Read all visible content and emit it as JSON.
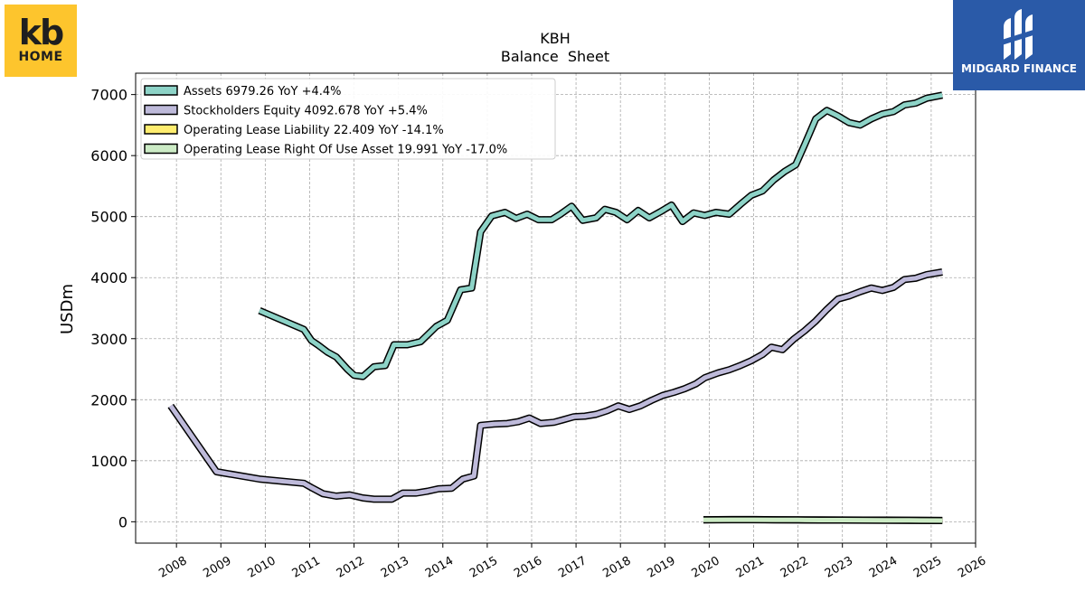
{
  "logos": {
    "left": {
      "line1": "kb",
      "line2": "HOME"
    },
    "right": {
      "text": "MIDGARD FINANCE"
    }
  },
  "chart_data": {
    "type": "line",
    "title": "KBH",
    "subtitle": "Balance  Sheet",
    "ylabel": "USDm",
    "xlabel": "",
    "ylim": [
      -350,
      7350
    ],
    "xlim": [
      2007.08,
      2026.0
    ],
    "yticks": [
      0,
      1000,
      2000,
      3000,
      4000,
      5000,
      6000,
      7000
    ],
    "xticks": [
      2008,
      2009,
      2010,
      2011,
      2012,
      2013,
      2014,
      2015,
      2016,
      2017,
      2018,
      2019,
      2020,
      2021,
      2022,
      2023,
      2024,
      2025,
      2026
    ],
    "grid": true,
    "legend_position": "top-left",
    "legend": [
      "Assets  6979.26 YoY +4.4%",
      "Stockholders Equity  4092.678 YoY +5.4%",
      "Operating Lease Liability  22.409 YoY -14.1%",
      "Operating Lease Right Of Use Asset  19.991 YoY -17.0%"
    ],
    "series": [
      {
        "name": "Assets",
        "color": "#8dd3c7",
        "points": [
          [
            2009.87,
            3460
          ],
          [
            2010.87,
            3150
          ],
          [
            2011.04,
            2970
          ],
          [
            2011.2,
            2890
          ],
          [
            2011.4,
            2780
          ],
          [
            2011.6,
            2700
          ],
          [
            2011.85,
            2500
          ],
          [
            2012.0,
            2400
          ],
          [
            2012.2,
            2380
          ],
          [
            2012.45,
            2540
          ],
          [
            2012.7,
            2560
          ],
          [
            2012.9,
            2900
          ],
          [
            2013.2,
            2900
          ],
          [
            2013.5,
            2950
          ],
          [
            2013.85,
            3200
          ],
          [
            2014.1,
            3300
          ],
          [
            2014.4,
            3800
          ],
          [
            2014.65,
            3830
          ],
          [
            2014.85,
            4750
          ],
          [
            2015.1,
            5010
          ],
          [
            2015.4,
            5070
          ],
          [
            2015.65,
            4970
          ],
          [
            2015.9,
            5040
          ],
          [
            2016.15,
            4950
          ],
          [
            2016.45,
            4950
          ],
          [
            2016.65,
            5040
          ],
          [
            2016.9,
            5170
          ],
          [
            2017.15,
            4940
          ],
          [
            2017.45,
            4980
          ],
          [
            2017.65,
            5120
          ],
          [
            2017.9,
            5070
          ],
          [
            2018.15,
            4950
          ],
          [
            2018.4,
            5100
          ],
          [
            2018.65,
            4980
          ],
          [
            2018.9,
            5080
          ],
          [
            2019.15,
            5190
          ],
          [
            2019.4,
            4920
          ],
          [
            2019.65,
            5060
          ],
          [
            2019.9,
            5020
          ],
          [
            2020.15,
            5070
          ],
          [
            2020.45,
            5040
          ],
          [
            2020.7,
            5200
          ],
          [
            2020.95,
            5350
          ],
          [
            2021.2,
            5420
          ],
          [
            2021.45,
            5600
          ],
          [
            2021.7,
            5740
          ],
          [
            2021.95,
            5850
          ],
          [
            2022.15,
            6180
          ],
          [
            2022.4,
            6600
          ],
          [
            2022.65,
            6740
          ],
          [
            2022.9,
            6650
          ],
          [
            2023.15,
            6540
          ],
          [
            2023.4,
            6500
          ],
          [
            2023.65,
            6600
          ],
          [
            2023.9,
            6680
          ],
          [
            2024.15,
            6720
          ],
          [
            2024.4,
            6830
          ],
          [
            2024.65,
            6860
          ],
          [
            2024.9,
            6940
          ],
          [
            2025.25,
            6990
          ]
        ]
      },
      {
        "name": "Stockholders Equity",
        "color": "#bebada",
        "points": [
          [
            2007.87,
            1900
          ],
          [
            2008.9,
            820
          ],
          [
            2009.87,
            700
          ],
          [
            2010.87,
            630
          ],
          [
            2011.04,
            560
          ],
          [
            2011.3,
            460
          ],
          [
            2011.6,
            420
          ],
          [
            2011.9,
            440
          ],
          [
            2012.2,
            390
          ],
          [
            2012.45,
            370
          ],
          [
            2012.85,
            370
          ],
          [
            2013.1,
            470
          ],
          [
            2013.4,
            470
          ],
          [
            2013.65,
            500
          ],
          [
            2013.9,
            540
          ],
          [
            2014.2,
            550
          ],
          [
            2014.45,
            700
          ],
          [
            2014.7,
            750
          ],
          [
            2014.85,
            1580
          ],
          [
            2015.15,
            1600
          ],
          [
            2015.45,
            1610
          ],
          [
            2015.7,
            1640
          ],
          [
            2015.95,
            1700
          ],
          [
            2016.2,
            1610
          ],
          [
            2016.5,
            1630
          ],
          [
            2016.7,
            1670
          ],
          [
            2016.95,
            1720
          ],
          [
            2017.2,
            1730
          ],
          [
            2017.45,
            1760
          ],
          [
            2017.7,
            1820
          ],
          [
            2017.95,
            1900
          ],
          [
            2018.2,
            1840
          ],
          [
            2018.45,
            1900
          ],
          [
            2018.7,
            1990
          ],
          [
            2018.95,
            2070
          ],
          [
            2019.2,
            2120
          ],
          [
            2019.45,
            2180
          ],
          [
            2019.7,
            2260
          ],
          [
            2019.9,
            2360
          ],
          [
            2020.2,
            2440
          ],
          [
            2020.45,
            2490
          ],
          [
            2020.7,
            2560
          ],
          [
            2020.95,
            2640
          ],
          [
            2021.2,
            2740
          ],
          [
            2021.4,
            2860
          ],
          [
            2021.65,
            2820
          ],
          [
            2021.9,
            2990
          ],
          [
            2022.15,
            3130
          ],
          [
            2022.4,
            3290
          ],
          [
            2022.65,
            3480
          ],
          [
            2022.9,
            3650
          ],
          [
            2023.15,
            3700
          ],
          [
            2023.4,
            3770
          ],
          [
            2023.65,
            3830
          ],
          [
            2023.9,
            3790
          ],
          [
            2024.15,
            3840
          ],
          [
            2024.4,
            3970
          ],
          [
            2024.65,
            3990
          ],
          [
            2024.9,
            4050
          ],
          [
            2025.25,
            4092
          ]
        ]
      },
      {
        "name": "Operating Lease Liability",
        "color": "#ffed6f",
        "points": [
          [
            2019.87,
            34
          ],
          [
            2020.5,
            36
          ],
          [
            2021.0,
            36
          ],
          [
            2021.5,
            34
          ],
          [
            2022.0,
            32
          ],
          [
            2022.5,
            30
          ],
          [
            2023.0,
            29
          ],
          [
            2023.5,
            28
          ],
          [
            2024.0,
            27
          ],
          [
            2024.5,
            25
          ],
          [
            2025.25,
            22.409
          ]
        ]
      },
      {
        "name": "Operating Lease Right Of Use Asset",
        "color": "#ccebc5",
        "points": [
          [
            2019.87,
            32
          ],
          [
            2020.5,
            34
          ],
          [
            2021.0,
            34
          ],
          [
            2021.5,
            32
          ],
          [
            2022.0,
            30
          ],
          [
            2022.5,
            28
          ],
          [
            2023.0,
            27
          ],
          [
            2023.5,
            26
          ],
          [
            2024.0,
            25
          ],
          [
            2024.5,
            23
          ],
          [
            2025.25,
            19.991
          ]
        ]
      }
    ]
  }
}
